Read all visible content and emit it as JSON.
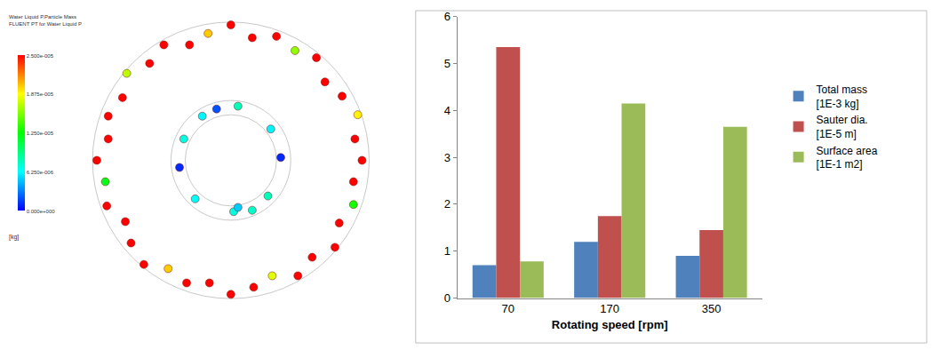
{
  "chart_data": [
    {
      "type": "scatter",
      "colorbar": {
        "title": [
          "Water Liquid P.Particle Mass",
          "FLUENT PT for Water Liquid P"
        ],
        "unit": "[kg]",
        "range": [
          0,
          2.5e-05
        ],
        "ticks": [
          {
            "value": 0,
            "label": "0.000e+000"
          },
          {
            "value": 6.25e-06,
            "label": "6.250e-006"
          },
          {
            "value": 1.25e-05,
            "label": "1.250e-005"
          },
          {
            "value": 1.875e-05,
            "label": "1.875e-005"
          },
          {
            "value": 2.5e-05,
            "label": "2.500e-005"
          }
        ]
      },
      "tick_labels": false,
      "xlim": [
        -1.05,
        1.05
      ],
      "ylim": [
        -1.05,
        1.05
      ],
      "x": [
        0.92,
        0.87,
        0.89,
        0.78,
        0.66,
        0.6,
        0.45,
        0.32,
        0.15,
        0.0,
        -0.16,
        -0.29,
        -0.47,
        -0.57,
        -0.73,
        -0.76,
        -0.86,
        -0.86,
        -0.94,
        -0.88,
        -0.87,
        -0.74,
        -0.7,
        -0.61,
        -0.44,
        -0.31,
        -0.15,
        0.0,
        0.16,
        0.29,
        0.47,
        0.57,
        0.73,
        0.76,
        0.86,
        0.86,
        0.05,
        -0.2,
        -0.33,
        -0.36,
        -0.25,
        0.02,
        0.05,
        0.26,
        0.35,
        0.28,
        -0.1,
        0.15
      ],
      "y": [
        0.0,
        0.15,
        0.32,
        0.45,
        0.55,
        0.72,
        0.77,
        0.87,
        0.86,
        0.95,
        0.89,
        0.81,
        0.81,
        0.68,
        0.61,
        0.44,
        0.31,
        0.15,
        0.0,
        -0.15,
        -0.32,
        -0.43,
        -0.58,
        -0.73,
        -0.76,
        -0.86,
        -0.86,
        -0.94,
        -0.89,
        -0.81,
        -0.81,
        -0.68,
        -0.61,
        -0.44,
        -0.31,
        -0.15,
        0.38,
        0.31,
        0.15,
        -0.05,
        -0.27,
        -0.36,
        -0.33,
        -0.25,
        0.02,
        0.22,
        0.36,
        -0.35
      ],
      "color_values": [
        2.5e-05,
        2.5e-05,
        1.9e-05,
        2.5e-05,
        2.5e-05,
        2.5e-05,
        1.6e-05,
        2.5e-05,
        2.5e-05,
        2.5e-05,
        2e-05,
        2.5e-05,
        2.5e-05,
        2.5e-05,
        1.7e-05,
        2.5e-05,
        2.5e-05,
        2.5e-05,
        2.5e-05,
        1.2e-05,
        2.5e-05,
        2.5e-05,
        2.5e-05,
        2.5e-05,
        2e-05,
        2.5e-05,
        2.5e-05,
        2.5e-05,
        2.5e-05,
        1.8e-05,
        2.5e-05,
        2.5e-05,
        2.5e-05,
        2.5e-05,
        1.3e-05,
        2.5e-05,
        8e-06,
        6e-06,
        7e-06,
        1e-06,
        6.5e-06,
        7e-06,
        5e-06,
        8e-06,
        1e-06,
        6e-06,
        2e-06,
        7.5e-06
      ]
    },
    {
      "type": "bar",
      "categories": [
        "70",
        "170",
        "350"
      ],
      "series": [
        {
          "name": "Total mass\n[1E-3 kg]",
          "color": "#4f81bd",
          "values": [
            0.7,
            1.2,
            0.9
          ]
        },
        {
          "name": "Sauter dia.\n[1E-5 m]",
          "color": "#c0504d",
          "values": [
            5.35,
            1.75,
            1.45
          ]
        },
        {
          "name": "Surface area\n[1E-1 m2]",
          "color": "#9bbb59",
          "values": [
            0.78,
            4.15,
            3.65
          ]
        }
      ],
      "xlabel": "Rotating speed [rpm]",
      "ylim": [
        0,
        6
      ],
      "yticks": [
        0,
        1,
        2,
        3,
        4,
        5,
        6
      ],
      "grid": false,
      "legend": "right"
    }
  ]
}
